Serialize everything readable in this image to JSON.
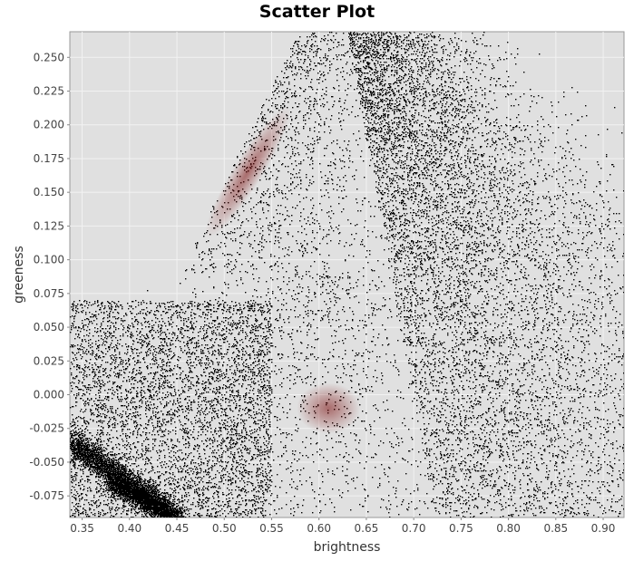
{
  "chart_data": {
    "type": "scatter",
    "title": "Scatter Plot",
    "xlabel": "brightness",
    "ylabel": "greeness",
    "xlim": [
      0.337,
      0.922
    ],
    "ylim": [
      -0.091,
      0.269
    ],
    "x_ticks": [
      0.35,
      0.4,
      0.45,
      0.5,
      0.55,
      0.6,
      0.65,
      0.7,
      0.75,
      0.8,
      0.85,
      0.9
    ],
    "x_tick_labels": [
      "0.35",
      "0.40",
      "0.45",
      "0.50",
      "0.55",
      "0.60",
      "0.65",
      "0.70",
      "0.75",
      "0.80",
      "0.85",
      "0.90"
    ],
    "y_ticks": [
      -0.075,
      -0.05,
      -0.025,
      0.0,
      0.025,
      0.05,
      0.075,
      0.1,
      0.125,
      0.15,
      0.175,
      0.2,
      0.225,
      0.25
    ],
    "y_tick_labels": [
      "-0.075",
      "-0.050",
      "-0.025",
      "0.000",
      "0.025",
      "0.050",
      "0.075",
      "0.100",
      "0.125",
      "0.150",
      "0.175",
      "0.200",
      "0.225",
      "0.250"
    ],
    "grid": true,
    "colors": {
      "plot_background": "#e0e0e0",
      "grid": "#f2f2f2",
      "points": "#000000",
      "dense_core": "#7a0a0a"
    },
    "point_cloud": {
      "description_shape": "triangular density cloud of pixel values",
      "apex": [
        0.59,
        0.269
      ],
      "left_edge": [
        [
          0.45,
          0.09
        ],
        [
          0.52,
          0.19
        ],
        [
          0.57,
          0.26
        ]
      ],
      "lower_left_tail": [
        [
          0.337,
          -0.04
        ],
        [
          0.4,
          -0.07
        ],
        [
          0.43,
          -0.09
        ]
      ],
      "right_spread": [
        [
          0.62,
          0.2
        ],
        [
          0.75,
          0.0
        ],
        [
          0.9,
          -0.06
        ]
      ],
      "dense_centers": [
        [
          0.53,
          0.16
        ],
        [
          0.61,
          -0.01
        ]
      ]
    }
  }
}
